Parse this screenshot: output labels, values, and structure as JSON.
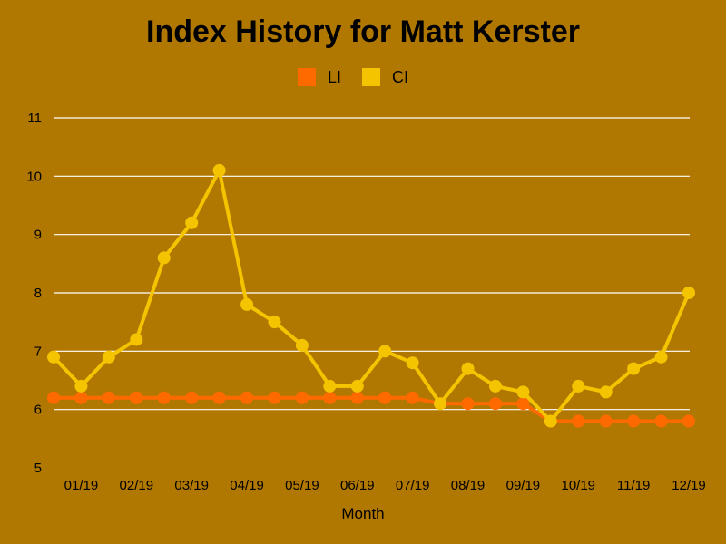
{
  "chart_data": {
    "type": "line",
    "title": "Index History for Matt Kerster",
    "xlabel": "Month",
    "ylabel": "",
    "ylim": [
      5,
      11
    ],
    "yticks": [
      "5",
      "6",
      "7",
      "8",
      "9",
      "10",
      "11"
    ],
    "xtick_labels": [
      "01/19",
      "02/19",
      "03/19",
      "04/19",
      "05/19",
      "06/19",
      "07/19",
      "08/19",
      "09/19",
      "10/19",
      "11/19",
      "12/19"
    ],
    "grid": true,
    "legend_position": "top-center",
    "series": [
      {
        "name": "LI",
        "color": "#ff6a00",
        "values": [
          6.2,
          6.2,
          6.2,
          6.2,
          6.2,
          6.2,
          6.2,
          6.2,
          6.2,
          6.2,
          6.2,
          6.2,
          6.2,
          6.2,
          6.1,
          6.1,
          6.1,
          6.1,
          5.8,
          5.8,
          5.8,
          5.8,
          5.8,
          5.8
        ]
      },
      {
        "name": "CI",
        "color": "#f5c400",
        "values": [
          6.9,
          6.4,
          6.9,
          7.2,
          8.6,
          9.2,
          10.1,
          7.8,
          7.5,
          7.1,
          6.4,
          6.4,
          7.0,
          6.8,
          6.1,
          6.7,
          6.4,
          6.3,
          5.8,
          6.4,
          6.3,
          6.7,
          6.9,
          8.0
        ]
      }
    ]
  }
}
